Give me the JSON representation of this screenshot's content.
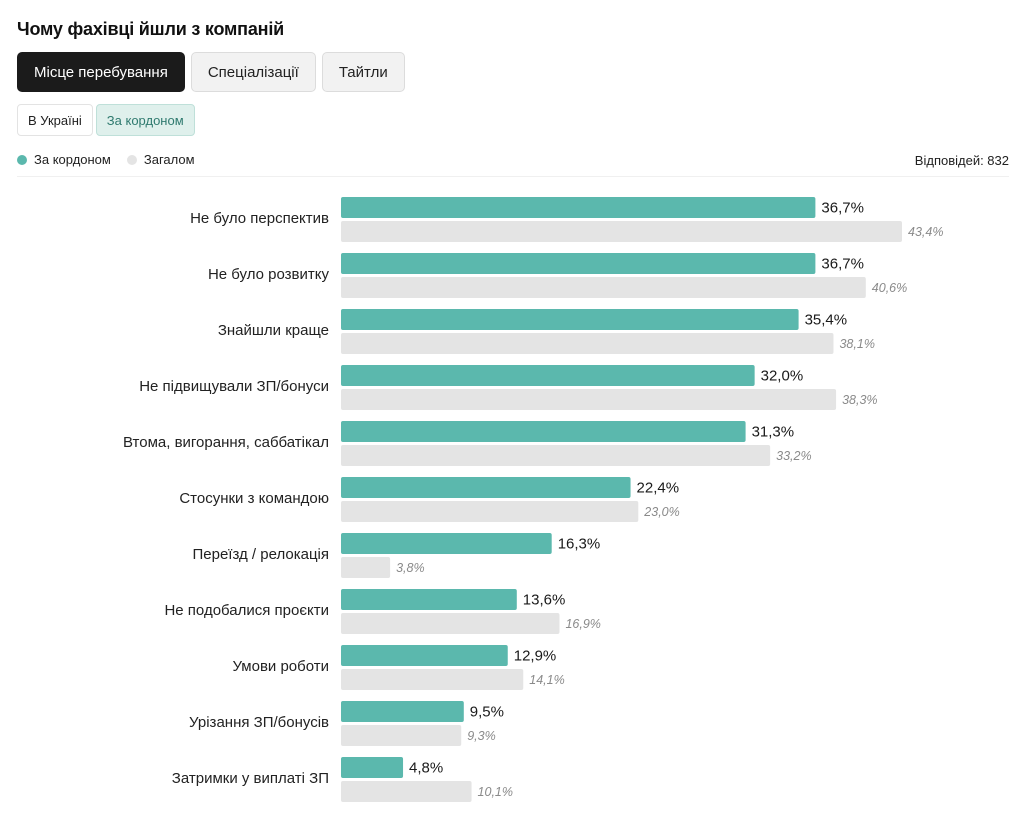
{
  "title": "Чому фахівці йшли з компаній",
  "tabs": [
    {
      "label": "Місце перебування",
      "active": true
    },
    {
      "label": "Спеціалізації",
      "active": false
    },
    {
      "label": "Тайтли",
      "active": false
    }
  ],
  "subtabs": [
    {
      "label": "В Україні",
      "active": false
    },
    {
      "label": "За кордоном",
      "active": true
    }
  ],
  "legend": [
    {
      "label": "За кордоном",
      "color": "#5bb8ad"
    },
    {
      "label": "Загалом",
      "color": "#e4e4e4"
    }
  ],
  "responses": "Відповідей: 832",
  "colors": {
    "primary": "#5bb8ad",
    "secondary": "#e4e4e4"
  },
  "chart_data": {
    "type": "bar",
    "orientation": "horizontal",
    "categories": [
      "Не було перспектив",
      "Не було розвитку",
      "Знайшли краще",
      "Не підвищували ЗП/бонуси",
      "Втома, вигорання, саббатікал",
      "Стосунки з командою",
      "Переїзд / релокація",
      "Не подобалися проєкти",
      "Умови роботи",
      "Урізання ЗП/бонусів",
      "Затримки у виплаті ЗП"
    ],
    "series": [
      {
        "name": "За кордоном",
        "values": [
          36.7,
          36.7,
          35.4,
          32.0,
          31.3,
          22.4,
          16.3,
          13.6,
          12.9,
          9.5,
          4.8
        ],
        "labels": [
          "36,7%",
          "36,7%",
          "35,4%",
          "32,0%",
          "31,3%",
          "22,4%",
          "16,3%",
          "13,6%",
          "12,9%",
          "9,5%",
          "4,8%"
        ]
      },
      {
        "name": "Загалом",
        "values": [
          43.4,
          40.6,
          38.1,
          38.3,
          33.2,
          23.0,
          3.8,
          16.9,
          14.1,
          9.3,
          10.1
        ],
        "labels": [
          "43,4%",
          "40,6%",
          "38,1%",
          "38,3%",
          "33,2%",
          "23,0%",
          "3,8%",
          "16,9%",
          "14,1%",
          "9,3%",
          "10,1%"
        ]
      }
    ],
    "xlim": [
      0,
      43.4
    ],
    "grid": false
  }
}
